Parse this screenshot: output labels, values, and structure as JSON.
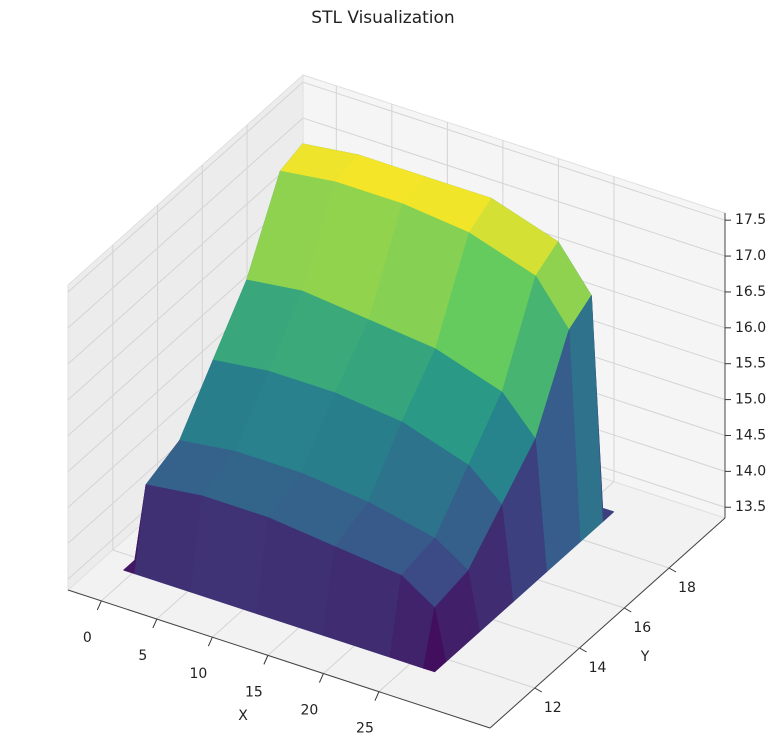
{
  "chart_data": {
    "type": "surface",
    "title": "STL Visualization",
    "x_label": "X",
    "y_label": "Y",
    "colormap": "viridis",
    "x": [
      0,
      1,
      6,
      12,
      18,
      24,
      27,
      28
    ],
    "y": [
      11,
      11.5,
      13,
      14.5,
      16,
      17.5,
      18.5,
      19
    ],
    "z": [
      [
        13.5,
        13.5,
        13.5,
        13.5,
        13.5,
        13.5,
        13.5,
        13.5
      ],
      [
        13.5,
        14.6,
        14.7,
        14.7,
        14.6,
        14.5,
        14.2,
        13.5
      ],
      [
        13.5,
        14.8,
        14.9,
        14.9,
        14.8,
        14.6,
        14.3,
        13.5
      ],
      [
        13.5,
        15.5,
        15.6,
        15.6,
        15.5,
        15.2,
        14.8,
        13.5
      ],
      [
        13.5,
        16.2,
        16.3,
        16.2,
        16.1,
        15.8,
        15.3,
        13.5
      ],
      [
        13.5,
        17.3,
        17.4,
        17.4,
        17.3,
        17.0,
        16.4,
        13.5
      ],
      [
        13.5,
        17.4,
        17.5,
        17.5,
        17.5,
        17.2,
        16.6,
        13.5
      ],
      [
        13.5,
        13.5,
        13.5,
        13.5,
        13.5,
        13.5,
        13.5,
        13.5
      ]
    ],
    "xlim": [
      -3,
      35
    ],
    "ylim": [
      10,
      20.5
    ],
    "zlim": [
      13.35,
      17.6
    ],
    "xticks": [
      0,
      5,
      10,
      15,
      20,
      25
    ],
    "yticks": [
      12,
      14,
      16,
      18
    ],
    "zticks": [
      13.5,
      {
        "value": 14,
        "label": "14.0"
      },
      14.5,
      {
        "value": 15,
        "label": "15.0"
      },
      15.5,
      {
        "value": 16,
        "label": "16.0"
      },
      16.5,
      {
        "value": 17,
        "label": "17.0"
      },
      17.5
    ],
    "grid": true
  }
}
